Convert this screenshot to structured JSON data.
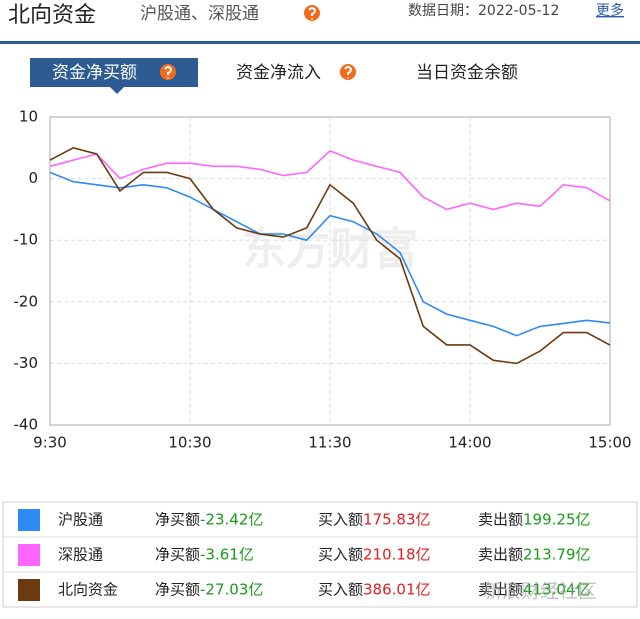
{
  "header": {
    "title": "北向资金",
    "subtitle": "沪股通、深股通",
    "date": "数据日期：2022-05-12",
    "more": "更多"
  },
  "tabs": [
    "资金净买额",
    "资金净流入",
    "当日资金余额"
  ],
  "chart_data": {
    "type": "line",
    "watermark": "东方财富",
    "x": [
      0,
      10,
      20,
      30,
      40,
      50,
      60,
      70,
      80,
      90,
      100,
      110,
      120,
      130,
      140,
      150,
      160,
      170,
      180,
      190,
      200,
      210,
      220,
      230,
      240
    ],
    "xlim": [
      0,
      240
    ],
    "xticks": [
      {
        "value": 0,
        "label": "9:30"
      },
      {
        "value": 60,
        "label": "10:30"
      },
      {
        "value": 120,
        "label": "11:30"
      },
      {
        "value": 180,
        "label": "14:00"
      },
      {
        "value": 240,
        "label": "15:00"
      }
    ],
    "ylim": [
      -40,
      10
    ],
    "yticks": [
      -40,
      -30,
      -20,
      -10,
      0,
      10
    ],
    "grid": true,
    "series": [
      {
        "name": "沪股通",
        "color": "#2f8af5",
        "values": [
          1,
          -0.5,
          -1,
          -1.5,
          -1,
          -1.5,
          -3,
          -5,
          -7,
          -9,
          -9,
          -10,
          -6,
          -7,
          -9,
          -12,
          -20,
          -22,
          -23,
          -24,
          -25.5,
          -24,
          -23.5,
          -23,
          -23.42
        ]
      },
      {
        "name": "深股通",
        "color": "#ff66ff",
        "values": [
          2,
          3,
          4,
          0,
          1.5,
          2.5,
          2.5,
          2,
          2,
          1.5,
          0.5,
          1,
          4.5,
          3,
          2,
          1,
          -3,
          -5,
          -4,
          -5,
          -4,
          -4.5,
          -1,
          -1.5,
          -3.61
        ]
      },
      {
        "name": "北向资金",
        "color": "#6b3a0e",
        "values": [
          3,
          5,
          4,
          -2,
          1,
          1,
          0,
          -5,
          -8,
          -9,
          -9.5,
          -8,
          -1,
          -4,
          -10,
          -13,
          -24,
          -27,
          -27,
          -29.5,
          -30,
          -28,
          -25,
          -25,
          -27.03
        ]
      }
    ]
  },
  "table": {
    "rows": [
      [
        "净买额",
        "-23.42亿",
        "买入额",
        "175.83亿",
        "卖出额",
        "199.25亿"
      ],
      [
        "净买额",
        "-3.61亿",
        "买入额",
        "210.18亿",
        "卖出额",
        "213.79亿"
      ],
      [
        "净买额",
        "-27.03亿",
        "买入额",
        "386.01亿",
        "卖出额",
        "413.04亿"
      ]
    ]
  },
  "watermark": "新浪财经社区"
}
